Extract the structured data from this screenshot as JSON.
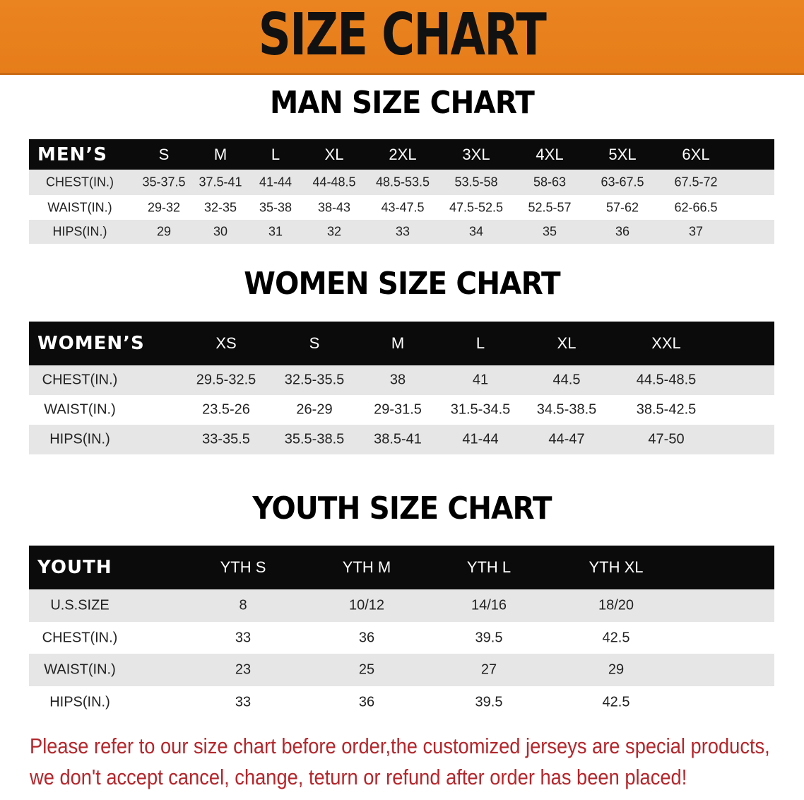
{
  "banner_title": "SIZE CHART",
  "colors": {
    "banner": "#e8801e",
    "header": "#0b0b0b",
    "row_alt": "#e6e6e6",
    "note": "#b5262b"
  },
  "men": {
    "title": "MAN SIZE CHART",
    "header": [
      "MEN’S",
      "S",
      "M",
      "L",
      "XL",
      "2XL",
      "3XL",
      "4XL",
      "5XL",
      "6XL"
    ],
    "rows": [
      [
        "CHEST(IN.)",
        "35-37.5",
        "37.5-41",
        "41-44",
        "44-48.5",
        "48.5-53.5",
        "53.5-58",
        "58-63",
        "63-67.5",
        "67.5-72"
      ],
      [
        "WAIST(IN.)",
        "29-32",
        "32-35",
        "35-38",
        "38-43",
        "43-47.5",
        "47.5-52.5",
        "52.5-57",
        "57-62",
        "62-66.5"
      ],
      [
        "HIPS(IN.)",
        "29",
        "30",
        "31",
        "32",
        "33",
        "34",
        "35",
        "36",
        "37"
      ]
    ]
  },
  "women": {
    "title": "WOMEN SIZE CHART",
    "header": [
      "WOMEN’S",
      "XS",
      "S",
      "M",
      "L",
      "XL",
      "XXL"
    ],
    "rows": [
      [
        "CHEST(IN.)",
        "29.5-32.5",
        "32.5-35.5",
        "38",
        "41",
        "44.5",
        "44.5-48.5"
      ],
      [
        "WAIST(IN.)",
        "23.5-26",
        "26-29",
        "29-31.5",
        "31.5-34.5",
        "34.5-38.5",
        "38.5-42.5"
      ],
      [
        "HIPS(IN.)",
        "33-35.5",
        "35.5-38.5",
        "38.5-41",
        "41-44",
        "44-47",
        "47-50"
      ]
    ]
  },
  "youth": {
    "title": "YOUTH SIZE CHART",
    "header": [
      "YOUTH",
      "YTH S",
      "YTH M",
      "YTH L",
      "YTH XL"
    ],
    "rows": [
      [
        "U.S.SIZE",
        "8",
        "10/12",
        "14/16",
        "18/20"
      ],
      [
        "CHEST(IN.)",
        "33",
        "36",
        "39.5",
        "42.5"
      ],
      [
        "WAIST(IN.)",
        "23",
        "25",
        "27",
        "29"
      ],
      [
        "HIPS(IN.)",
        "33",
        "36",
        "39.5",
        "42.5"
      ]
    ]
  },
  "notes": [
    "Please refer to our size chart before order,the customized jerseys are special products,",
    "we don't accept cancel, change, teturn or refund after order has been placed!"
  ]
}
